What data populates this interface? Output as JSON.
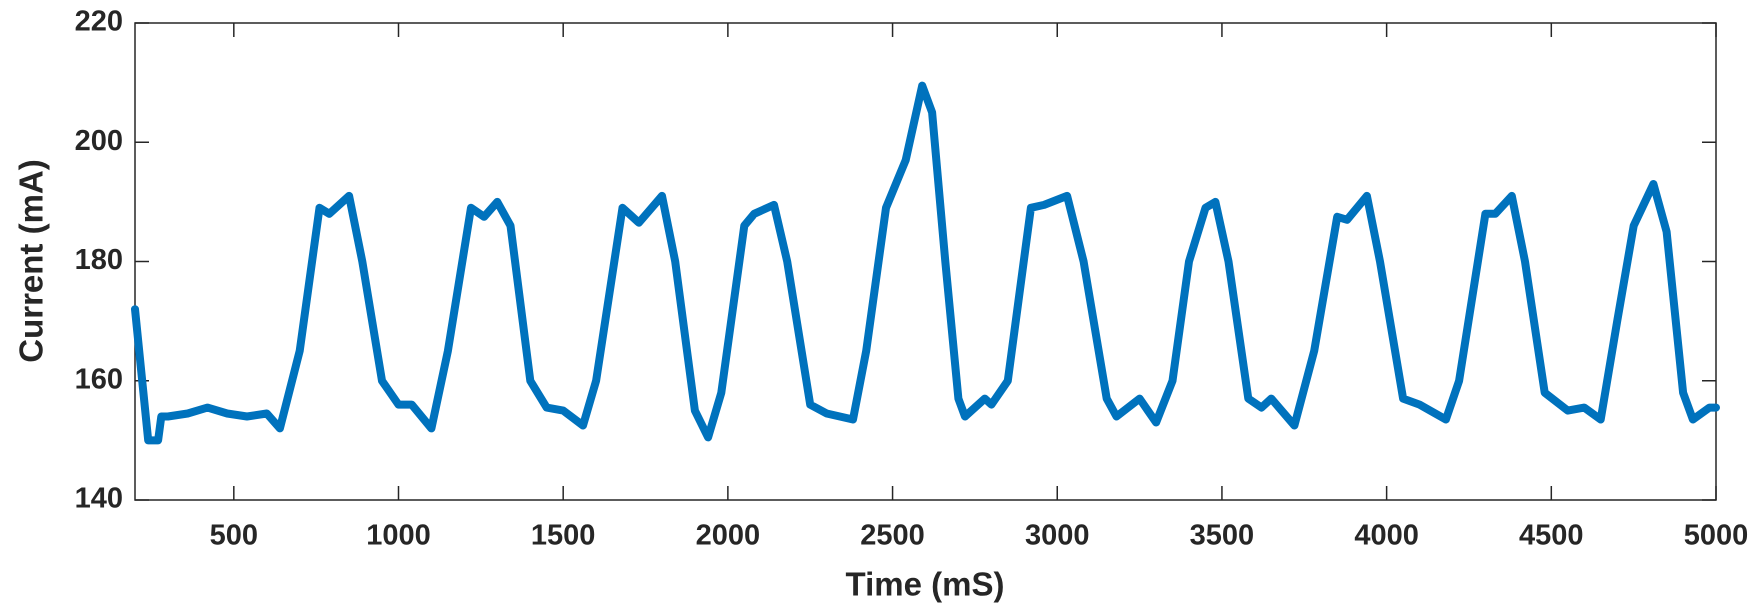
{
  "chart_data": {
    "type": "line",
    "x_label": "Time (mS)",
    "y_label": "Current (mA)",
    "x": [
      200,
      240,
      270,
      280,
      300,
      360,
      420,
      480,
      540,
      600,
      640,
      700,
      760,
      790,
      850,
      890,
      950,
      1000,
      1040,
      1100,
      1150,
      1220,
      1260,
      1300,
      1340,
      1400,
      1450,
      1500,
      1560,
      1600,
      1680,
      1730,
      1800,
      1840,
      1900,
      1940,
      1980,
      2050,
      2080,
      2140,
      2180,
      2250,
      2300,
      2380,
      2420,
      2480,
      2540,
      2590,
      2620,
      2660,
      2700,
      2720,
      2780,
      2800,
      2850,
      2920,
      2960,
      3030,
      3080,
      3150,
      3180,
      3250,
      3300,
      3350,
      3400,
      3450,
      3480,
      3520,
      3580,
      3620,
      3650,
      3720,
      3780,
      3850,
      3880,
      3940,
      3980,
      4050,
      4100,
      4180,
      4220,
      4300,
      4330,
      4380,
      4420,
      4480,
      4550,
      4600,
      4650,
      4700,
      4750,
      4810,
      4850,
      4900,
      4930,
      4980,
      5000
    ],
    "series": [
      {
        "name": "Current",
        "color": "#0072bd",
        "values": [
          172,
          150,
          150,
          154,
          154,
          154.5,
          155.5,
          154.5,
          154,
          154.5,
          152,
          165,
          189,
          188,
          191,
          180,
          160,
          156,
          156,
          152,
          165,
          189,
          187.5,
          190,
          186,
          160,
          155.5,
          155,
          152.5,
          160,
          189,
          186.5,
          191,
          180,
          155,
          150.5,
          158,
          186,
          188,
          189.5,
          180,
          156,
          154.5,
          153.5,
          165,
          189,
          197,
          209.5,
          205,
          180,
          157,
          154,
          157,
          156,
          160,
          189,
          189.5,
          191,
          180,
          157,
          154,
          157,
          153,
          160,
          180,
          189,
          190,
          180,
          157,
          155.5,
          157,
          152.5,
          165,
          187.5,
          187,
          191,
          180,
          157,
          156,
          153.5,
          160,
          188,
          188,
          191,
          180,
          158,
          155,
          155.5,
          153.5,
          170,
          186,
          193,
          185,
          158,
          153.5,
          155.5,
          155.5
        ]
      }
    ],
    "xlim": [
      200,
      5000
    ],
    "ylim": [
      140,
      220
    ],
    "xticks": [
      500,
      1000,
      1500,
      2000,
      2500,
      3000,
      3500,
      4000,
      4500,
      5000
    ],
    "yticks": [
      140,
      160,
      180,
      200,
      220
    ]
  }
}
